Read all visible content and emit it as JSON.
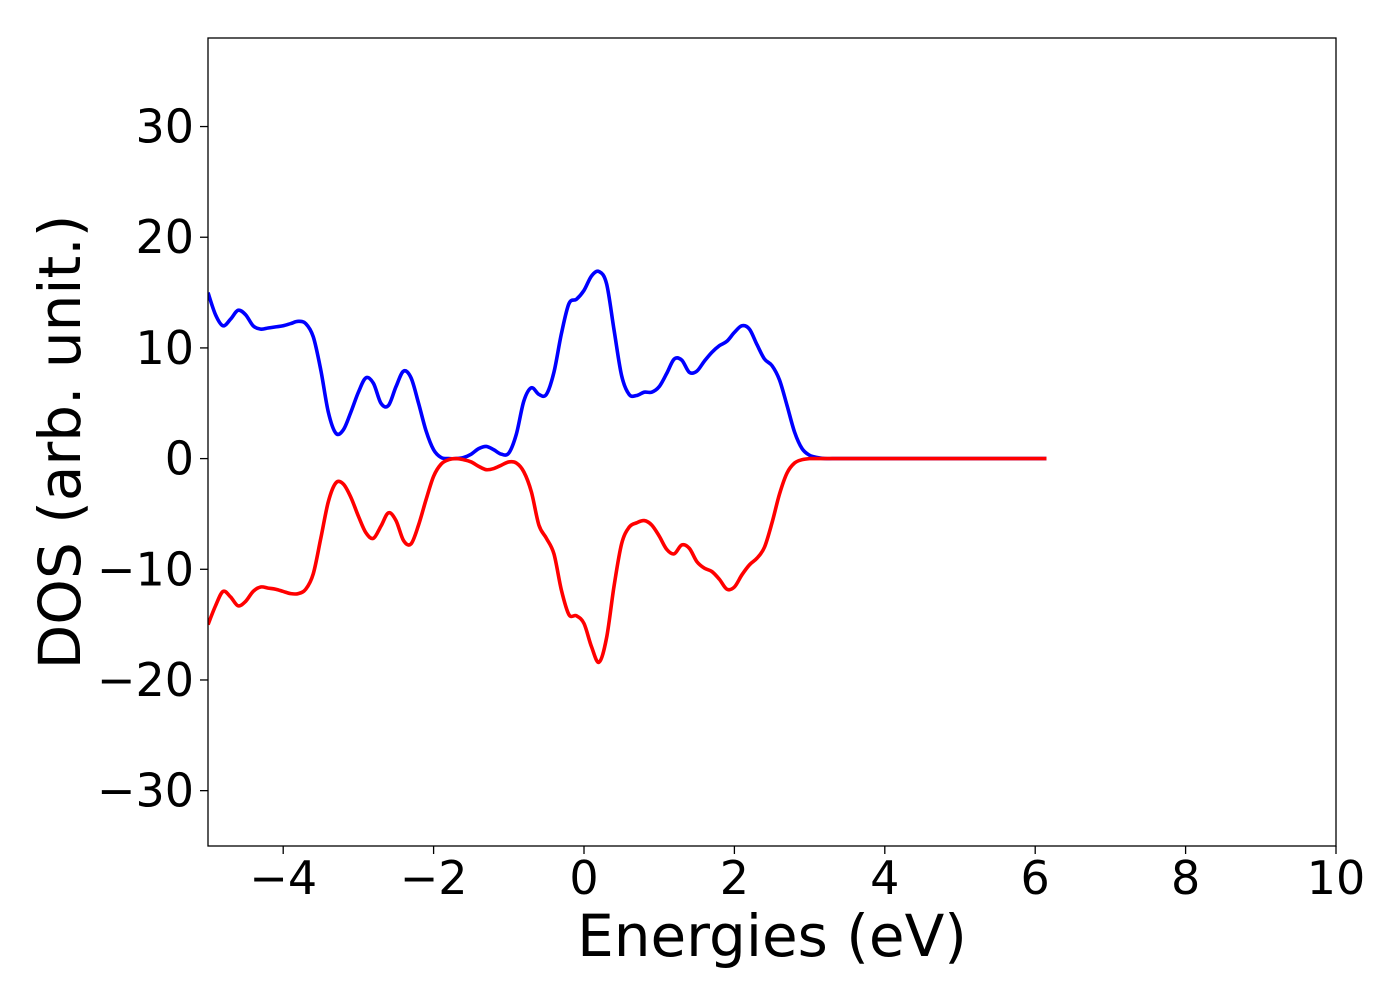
{
  "chart_data": {
    "type": "line",
    "title": "",
    "xlabel": "Energies (eV)",
    "ylabel": "DOS (arb. unit.)",
    "xlim": [
      -5,
      10
    ],
    "ylim": [
      -35,
      38
    ],
    "xticks": [
      -4,
      -2,
      0,
      2,
      4,
      6,
      8,
      10
    ],
    "yticks": [
      -30,
      -20,
      -10,
      0,
      10,
      20,
      30
    ],
    "xtick_labels": [
      "−4",
      "−2",
      "0",
      "2",
      "4",
      "6",
      "8",
      "10"
    ],
    "ytick_labels": [
      "−30",
      "−20",
      "−10",
      "0",
      "10",
      "20",
      "30"
    ],
    "grid": false,
    "legend": "none",
    "series": [
      {
        "color": "#0000ff",
        "x": [
          -5.0,
          -4.9,
          -4.8,
          -4.7,
          -4.6,
          -4.5,
          -4.4,
          -4.3,
          -4.2,
          -4.1,
          -4.0,
          -3.9,
          -3.8,
          -3.7,
          -3.6,
          -3.5,
          -3.4,
          -3.3,
          -3.2,
          -3.1,
          -3.0,
          -2.9,
          -2.8,
          -2.7,
          -2.6,
          -2.5,
          -2.4,
          -2.3,
          -2.2,
          -2.1,
          -2.0,
          -1.9,
          -1.8,
          -1.7,
          -1.6,
          -1.5,
          -1.4,
          -1.3,
          -1.2,
          -1.1,
          -1.0,
          -0.9,
          -0.8,
          -0.7,
          -0.6,
          -0.5,
          -0.4,
          -0.3,
          -0.2,
          -0.1,
          0.0,
          0.1,
          0.2,
          0.3,
          0.4,
          0.5,
          0.6,
          0.7,
          0.8,
          0.9,
          1.0,
          1.1,
          1.2,
          1.3,
          1.4,
          1.5,
          1.6,
          1.7,
          1.8,
          1.9,
          2.0,
          2.1,
          2.2,
          2.3,
          2.4,
          2.5,
          2.6,
          2.7,
          2.8,
          2.9,
          3.0,
          3.1,
          3.2,
          3.3,
          3.4,
          3.5,
          3.6,
          3.7,
          3.8,
          3.9,
          4.0,
          4.1,
          4.2,
          4.4,
          4.6,
          4.8,
          5.0,
          5.2,
          5.4,
          5.6,
          5.8,
          6.0,
          6.15
        ],
        "y": [
          15.0,
          13.0,
          12.0,
          12.6,
          13.4,
          13.0,
          12.0,
          11.7,
          11.8,
          11.9,
          12.0,
          12.2,
          12.4,
          12.2,
          11.0,
          8.0,
          4.2,
          2.3,
          2.6,
          4.2,
          6.0,
          7.3,
          6.8,
          5.0,
          4.8,
          6.5,
          7.9,
          7.3,
          5.0,
          2.5,
          0.8,
          0.1,
          0.0,
          0.0,
          0.1,
          0.4,
          0.9,
          1.1,
          0.8,
          0.4,
          0.5,
          2.2,
          5.2,
          6.4,
          5.8,
          5.8,
          7.8,
          11.3,
          14.0,
          14.4,
          15.2,
          16.5,
          16.9,
          15.8,
          11.6,
          7.5,
          5.8,
          5.7,
          6.0,
          6.0,
          6.5,
          7.7,
          9.0,
          8.9,
          7.8,
          7.9,
          8.8,
          9.6,
          10.2,
          10.6,
          11.4,
          12.0,
          11.7,
          10.3,
          9.0,
          8.4,
          7.1,
          4.8,
          2.4,
          0.9,
          0.3,
          0.1,
          0.0,
          0.0,
          0.0,
          0.0,
          0.0,
          0.0,
          0.0,
          0.0,
          0.0,
          0.0,
          0.0,
          0.0,
          0.0,
          0.0,
          0.0,
          0.0,
          0.0,
          0.0,
          0.0,
          0.0,
          0.0
        ]
      },
      {
        "color": "#ff0000",
        "x": [
          -5.0,
          -4.9,
          -4.8,
          -4.7,
          -4.6,
          -4.5,
          -4.4,
          -4.3,
          -4.2,
          -4.1,
          -4.0,
          -3.9,
          -3.8,
          -3.7,
          -3.6,
          -3.5,
          -3.4,
          -3.3,
          -3.2,
          -3.1,
          -3.0,
          -2.9,
          -2.8,
          -2.7,
          -2.6,
          -2.5,
          -2.4,
          -2.3,
          -2.2,
          -2.1,
          -2.0,
          -1.9,
          -1.8,
          -1.7,
          -1.6,
          -1.5,
          -1.4,
          -1.3,
          -1.2,
          -1.1,
          -1.0,
          -0.9,
          -0.8,
          -0.7,
          -0.6,
          -0.5,
          -0.4,
          -0.3,
          -0.2,
          -0.1,
          0.0,
          0.1,
          0.2,
          0.3,
          0.4,
          0.5,
          0.6,
          0.7,
          0.8,
          0.9,
          1.0,
          1.1,
          1.2,
          1.3,
          1.4,
          1.5,
          1.6,
          1.7,
          1.8,
          1.9,
          2.0,
          2.1,
          2.2,
          2.3,
          2.4,
          2.5,
          2.6,
          2.7,
          2.8,
          2.9,
          3.0,
          3.1,
          3.2,
          3.3,
          3.4,
          3.5,
          3.6,
          3.7,
          3.8,
          3.9,
          4.0,
          4.1,
          4.2,
          4.4,
          4.6,
          4.8,
          5.0,
          5.2,
          5.4,
          5.6,
          5.8,
          6.0,
          6.15
        ],
        "y": [
          -15.0,
          -13.3,
          -12.0,
          -12.5,
          -13.3,
          -12.9,
          -12.0,
          -11.6,
          -11.7,
          -11.8,
          -12.0,
          -12.2,
          -12.2,
          -11.8,
          -10.4,
          -7.2,
          -3.9,
          -2.2,
          -2.3,
          -3.5,
          -5.2,
          -6.7,
          -7.2,
          -6.1,
          -4.9,
          -5.6,
          -7.4,
          -7.7,
          -6.0,
          -3.7,
          -1.6,
          -0.5,
          -0.1,
          0.0,
          -0.1,
          -0.3,
          -0.7,
          -1.0,
          -0.9,
          -0.6,
          -0.3,
          -0.4,
          -1.2,
          -3.0,
          -6.0,
          -7.2,
          -8.6,
          -11.9,
          -14.1,
          -14.2,
          -14.9,
          -17.0,
          -18.4,
          -16.2,
          -11.5,
          -7.7,
          -6.2,
          -5.8,
          -5.6,
          -6.0,
          -7.0,
          -8.2,
          -8.6,
          -7.8,
          -8.1,
          -9.3,
          -9.9,
          -10.2,
          -10.9,
          -11.8,
          -11.6,
          -10.5,
          -9.6,
          -9.0,
          -8.0,
          -5.8,
          -3.2,
          -1.3,
          -0.4,
          -0.1,
          0.0,
          0.0,
          0.0,
          0.0,
          0.0,
          0.0,
          0.0,
          0.0,
          0.0,
          0.0,
          0.0,
          0.0,
          0.0,
          0.0,
          0.0,
          0.0,
          0.0,
          0.0,
          0.0,
          0.0,
          0.0,
          0.0,
          0.0
        ]
      }
    ]
  }
}
